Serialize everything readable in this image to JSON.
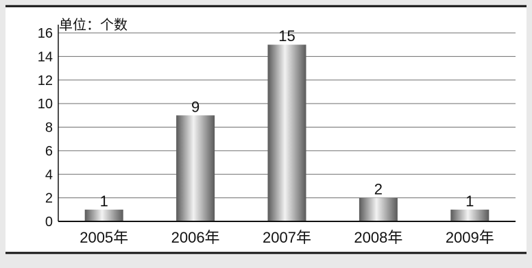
{
  "chart_data": {
    "type": "bar",
    "categories": [
      "2005年",
      "2006年",
      "2007年",
      "2008年",
      "2009年"
    ],
    "values": [
      1,
      9,
      15,
      2,
      1
    ],
    "data_labels": [
      "1",
      "9",
      "15",
      "2",
      "1"
    ],
    "title": "",
    "unit_label": "单位：个数",
    "xlabel": "",
    "ylabel": "",
    "ylim": [
      0,
      16
    ],
    "yticks": [
      0,
      2,
      4,
      6,
      8,
      10,
      12,
      14,
      16
    ],
    "grid": true,
    "legend": "none",
    "colors": {
      "background": "#e9e9e9",
      "plot": "#ffffff",
      "gridline": "#6e6e6e",
      "axis": "#111111",
      "bar_dark": "#5a5a5a",
      "bar_light": "#f2f2f2",
      "text": "#111111"
    }
  }
}
